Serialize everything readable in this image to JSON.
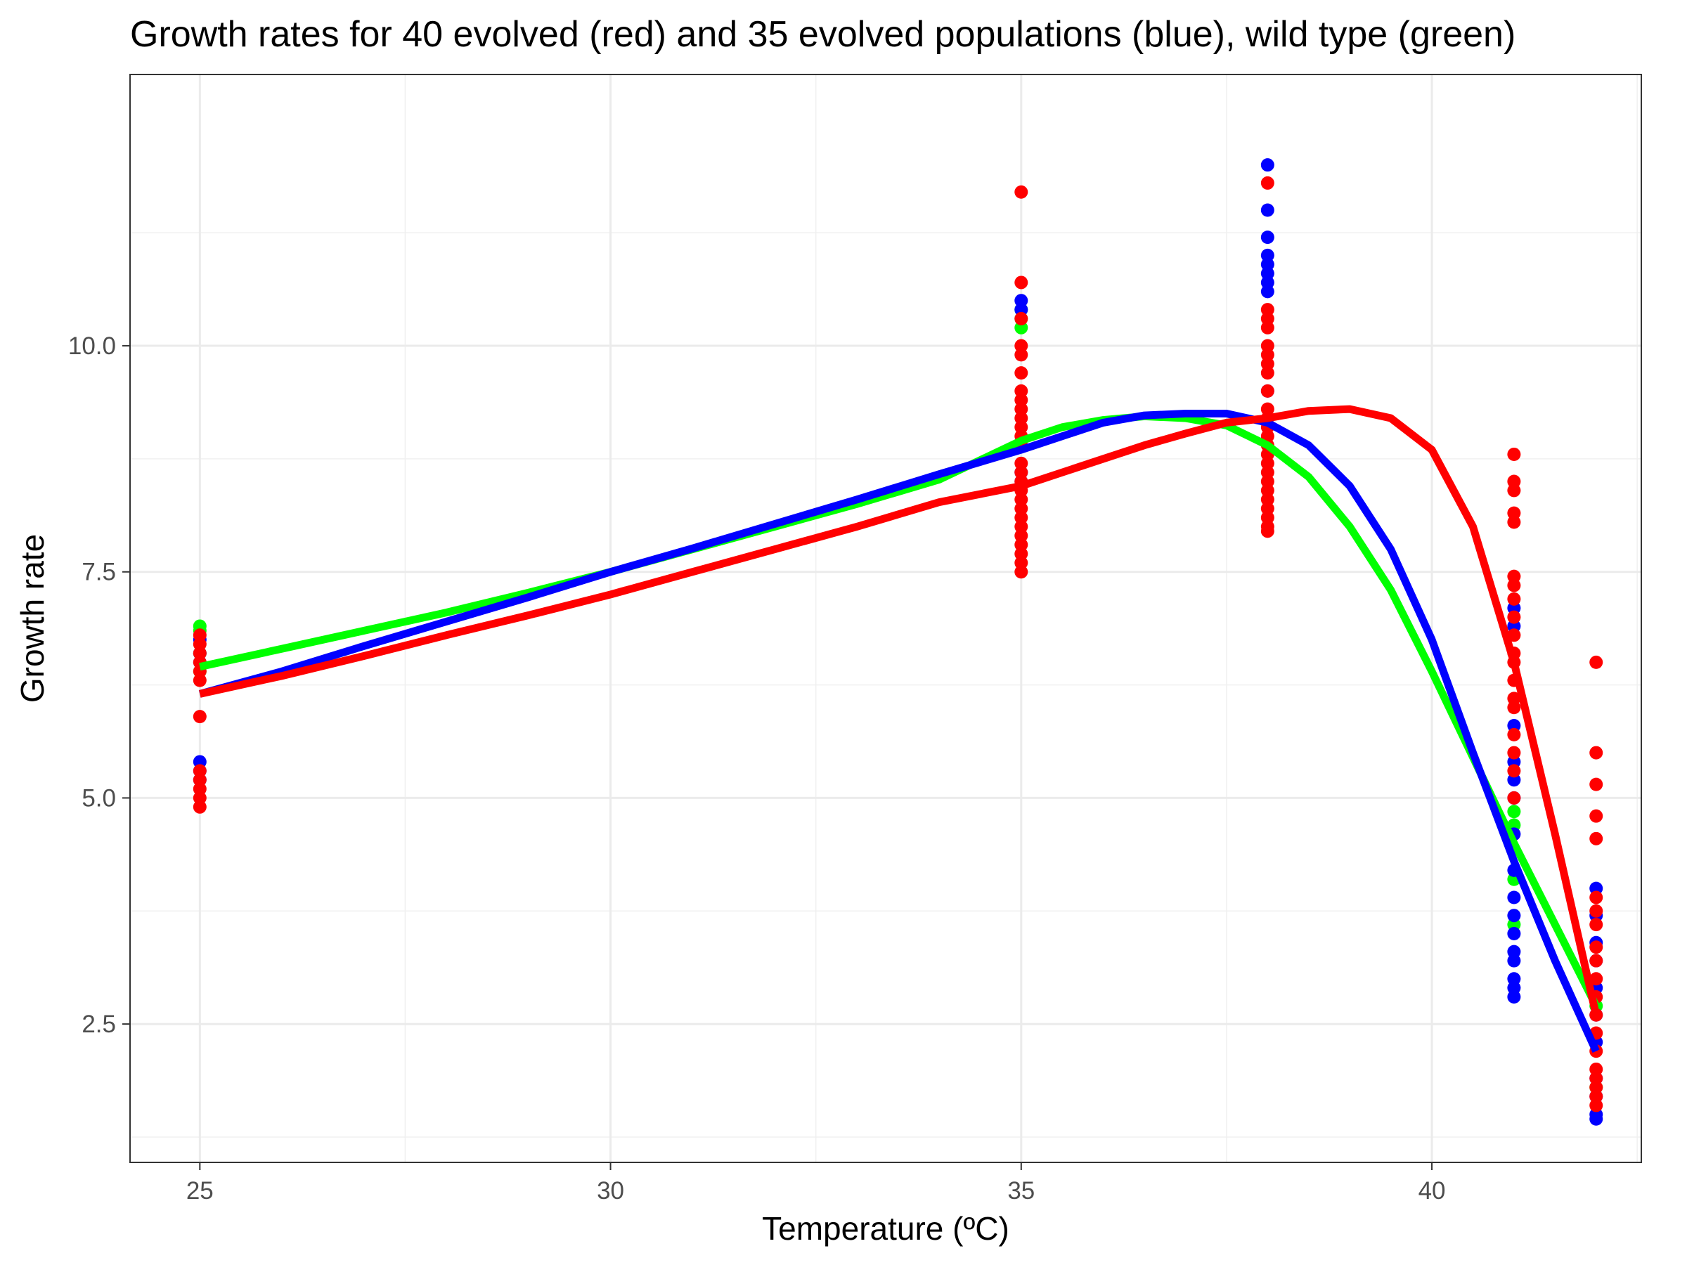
{
  "chart_data": {
    "type": "scatter",
    "title": "Growth rates for 40 evolved (red) and 35 evolved populations (blue), wild type (green)",
    "xlabel": "Temperature (ºC)",
    "ylabel": "Growth rate",
    "xlim": [
      24.15,
      42.55
    ],
    "ylim": [
      0.97,
      13.0
    ],
    "x_ticks": [
      25,
      30,
      35,
      40
    ],
    "x_tick_labels": [
      "25",
      "30",
      "35",
      "40"
    ],
    "y_ticks": [
      2.5,
      5.0,
      7.5,
      10.0
    ],
    "y_tick_labels": [
      "2.5",
      "5.0",
      "7.5",
      "10.0"
    ],
    "grid": true,
    "legend": "none",
    "colors": {
      "red": "#ff0000",
      "blue": "#0000ff",
      "green": "#00ff00"
    },
    "series": [
      {
        "color": "#00ff00",
        "points": [
          {
            "x": 25,
            "values": [
              6.9,
              6.85,
              6.6,
              6.4
            ]
          },
          {
            "x": 35,
            "values": [
              10.4,
              10.3,
              10.2
            ]
          },
          {
            "x": 41,
            "values": [
              4.85,
              4.7,
              4.1,
              3.6
            ]
          },
          {
            "x": 42,
            "values": [
              2.7,
              1.8
            ]
          }
        ],
        "curve": {
          "x": [
            25,
            26,
            27,
            28,
            29,
            30,
            31,
            32,
            33,
            34,
            35,
            35.5,
            36,
            36.5,
            37,
            37.5,
            38,
            38.5,
            39,
            39.5,
            40,
            40.5,
            41,
            41.5,
            42
          ],
          "y": [
            6.45,
            6.65,
            6.85,
            7.05,
            7.27,
            7.5,
            7.75,
            8.0,
            8.25,
            8.52,
            8.95,
            9.1,
            9.18,
            9.22,
            9.2,
            9.12,
            8.9,
            8.55,
            8.0,
            7.3,
            6.4,
            5.45,
            4.5,
            3.6,
            2.7
          ]
        }
      },
      {
        "color": "#0000ff",
        "points": [
          {
            "x": 25,
            "values": [
              6.75,
              6.6,
              6.5,
              5.4,
              5.3,
              5.2
            ]
          },
          {
            "x": 35,
            "values": [
              10.5,
              10.4,
              8.6,
              8.5
            ]
          },
          {
            "x": 38,
            "values": [
              12.0,
              11.5,
              11.2,
              11.0,
              10.9,
              10.8,
              10.7,
              10.6,
              9.5
            ]
          },
          {
            "x": 41,
            "values": [
              7.1,
              6.9,
              5.8,
              5.4,
              5.2,
              5.0,
              4.6,
              4.2,
              3.9,
              3.7,
              3.5,
              3.3,
              3.2,
              3.0,
              2.9,
              2.8
            ]
          },
          {
            "x": 42,
            "values": [
              4.0,
              3.7,
              3.4,
              3.2,
              2.9,
              2.6,
              2.3,
              1.9,
              1.7,
              1.5,
              1.45
            ]
          }
        ],
        "curve": {
          "x": [
            25,
            26,
            27,
            28,
            29,
            30,
            31,
            32,
            33,
            34,
            35,
            35.5,
            36,
            36.5,
            37,
            37.5,
            38,
            38.5,
            39,
            39.5,
            40,
            40.5,
            41,
            41.5,
            42
          ],
          "y": [
            6.15,
            6.4,
            6.68,
            6.95,
            7.22,
            7.5,
            7.76,
            8.03,
            8.3,
            8.58,
            8.85,
            9.0,
            9.15,
            9.23,
            9.25,
            9.25,
            9.15,
            8.9,
            8.45,
            7.75,
            6.75,
            5.5,
            4.3,
            3.2,
            2.2
          ]
        }
      },
      {
        "color": "#ff0000",
        "points": [
          {
            "x": 25,
            "values": [
              6.8,
              6.7,
              6.6,
              6.5,
              6.4,
              6.3,
              5.9,
              5.3,
              5.2,
              5.1,
              5.0,
              4.9
            ]
          },
          {
            "x": 35,
            "values": [
              11.7,
              10.7,
              10.3,
              10.0,
              9.9,
              9.7,
              9.5,
              9.4,
              9.3,
              9.2,
              9.1,
              9.0,
              8.9,
              8.7,
              8.6,
              8.5,
              8.4,
              8.3,
              8.2,
              8.1,
              8.0,
              7.9,
              7.8,
              7.7,
              7.6,
              7.5
            ]
          },
          {
            "x": 38,
            "values": [
              11.8,
              10.4,
              10.3,
              10.2,
              10.0,
              9.9,
              9.8,
              9.7,
              9.5,
              9.3,
              9.2,
              9.1,
              9.0,
              8.9,
              8.8,
              8.7,
              8.6,
              8.5,
              8.4,
              8.3,
              8.2,
              8.1,
              8.0,
              7.95
            ]
          },
          {
            "x": 41,
            "values": [
              8.8,
              8.5,
              8.4,
              8.15,
              8.05,
              7.45,
              7.35,
              7.2,
              7.0,
              6.8,
              6.6,
              6.5,
              6.3,
              6.1,
              6.0,
              5.7,
              5.5,
              5.3,
              5.0
            ]
          },
          {
            "x": 42,
            "values": [
              6.5,
              5.5,
              5.15,
              4.8,
              4.55,
              3.9,
              3.75,
              3.6,
              3.35,
              3.2,
              3.0,
              2.8,
              2.6,
              2.4,
              2.2,
              2.0,
              1.9,
              1.8,
              1.7,
              1.6
            ]
          }
        ],
        "curve": {
          "x": [
            25,
            26,
            27,
            28,
            29,
            30,
            31,
            32,
            33,
            34,
            35,
            35.5,
            36,
            36.5,
            37,
            37.5,
            38,
            38.5,
            39,
            39.5,
            40,
            40.5,
            41,
            41.5,
            42
          ],
          "y": [
            6.15,
            6.35,
            6.57,
            6.8,
            7.02,
            7.25,
            7.5,
            7.75,
            8.0,
            8.27,
            8.45,
            8.6,
            8.75,
            8.9,
            9.03,
            9.15,
            9.2,
            9.28,
            9.3,
            9.2,
            8.85,
            8.0,
            6.5,
            4.6,
            2.6
          ]
        }
      }
    ]
  }
}
